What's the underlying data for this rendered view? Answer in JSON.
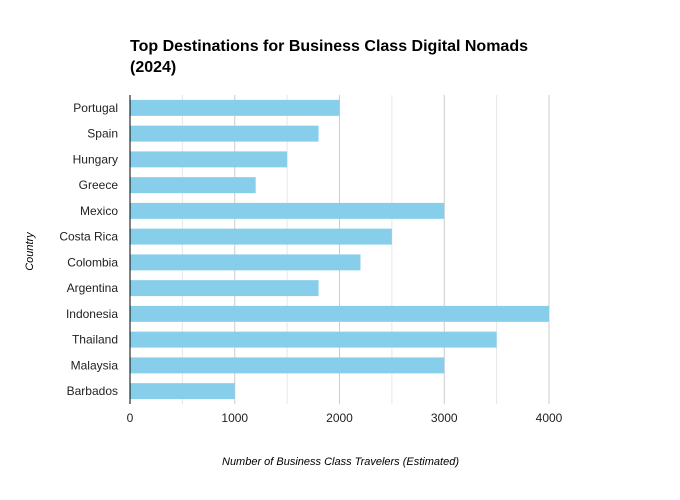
{
  "chart_data": {
    "type": "bar",
    "orientation": "horizontal",
    "title": "Top Destinations for Business Class Digital Nomads (2024)",
    "xlabel": "Number of Business Class Travelers (Estimated)",
    "ylabel": "Country",
    "categories": [
      "Portugal",
      "Spain",
      "Hungary",
      "Greece",
      "Mexico",
      "Costa Rica",
      "Colombia",
      "Argentina",
      "Indonesia",
      "Thailand",
      "Malaysia",
      "Barbados"
    ],
    "values": [
      2000,
      1800,
      1500,
      1200,
      3000,
      2500,
      2200,
      1800,
      4000,
      3500,
      3000,
      1000
    ],
    "xlim": [
      0,
      4000
    ],
    "x_ticks": [
      0,
      1000,
      2000,
      3000,
      4000
    ],
    "x_tick_labels": [
      "0",
      "1000",
      "2000",
      "3000",
      "4000"
    ],
    "grid": "vertical",
    "legend": "none",
    "colors": {
      "bar": "#87ceeb",
      "grid_major": "#cccccc",
      "grid_minor": "#e6e6e6",
      "axis": "#000000"
    }
  }
}
